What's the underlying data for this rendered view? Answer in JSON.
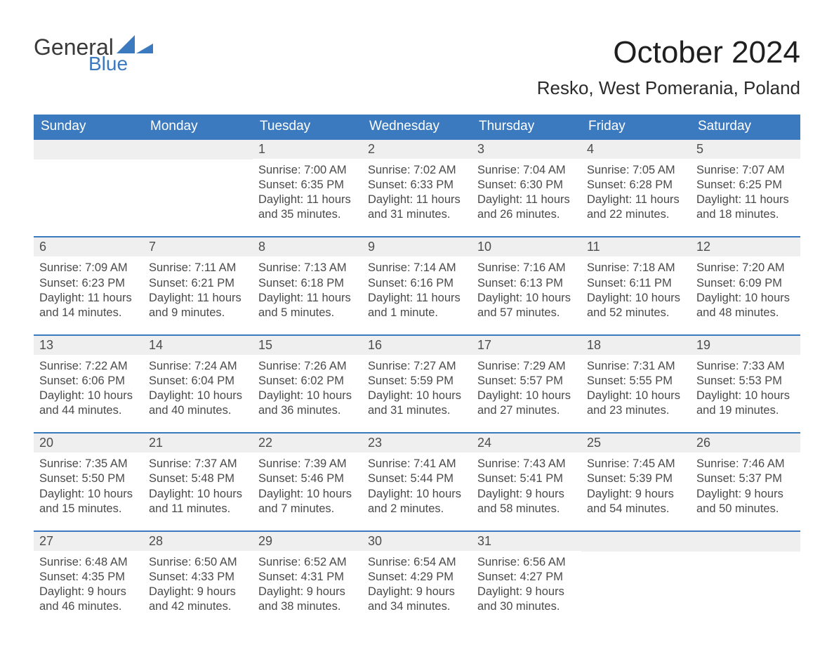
{
  "brand": {
    "line1": "General",
    "line2": "Blue",
    "logo_color": "#3c7abf",
    "text_color": "#3a3a3a"
  },
  "header": {
    "title": "October 2024",
    "subtitle": "Resko, West Pomerania, Poland"
  },
  "calendar": {
    "weekdays": [
      "Sunday",
      "Monday",
      "Tuesday",
      "Wednesday",
      "Thursday",
      "Friday",
      "Saturday"
    ],
    "colors": {
      "header_bg": "#3c7abf",
      "header_fg": "#ffffff",
      "daynum_bg": "#efefef",
      "rule": "#3c7abf"
    },
    "labels": {
      "sunrise": "Sunrise:",
      "sunset": "Sunset:",
      "daylight": "Daylight:"
    },
    "weeks": [
      [
        null,
        null,
        {
          "n": 1,
          "sunrise": "7:00 AM",
          "sunset": "6:35 PM",
          "daylight": "11 hours and 35 minutes."
        },
        {
          "n": 2,
          "sunrise": "7:02 AM",
          "sunset": "6:33 PM",
          "daylight": "11 hours and 31 minutes."
        },
        {
          "n": 3,
          "sunrise": "7:04 AM",
          "sunset": "6:30 PM",
          "daylight": "11 hours and 26 minutes."
        },
        {
          "n": 4,
          "sunrise": "7:05 AM",
          "sunset": "6:28 PM",
          "daylight": "11 hours and 22 minutes."
        },
        {
          "n": 5,
          "sunrise": "7:07 AM",
          "sunset": "6:25 PM",
          "daylight": "11 hours and 18 minutes."
        }
      ],
      [
        {
          "n": 6,
          "sunrise": "7:09 AM",
          "sunset": "6:23 PM",
          "daylight": "11 hours and 14 minutes."
        },
        {
          "n": 7,
          "sunrise": "7:11 AM",
          "sunset": "6:21 PM",
          "daylight": "11 hours and 9 minutes."
        },
        {
          "n": 8,
          "sunrise": "7:13 AM",
          "sunset": "6:18 PM",
          "daylight": "11 hours and 5 minutes."
        },
        {
          "n": 9,
          "sunrise": "7:14 AM",
          "sunset": "6:16 PM",
          "daylight": "11 hours and 1 minute."
        },
        {
          "n": 10,
          "sunrise": "7:16 AM",
          "sunset": "6:13 PM",
          "daylight": "10 hours and 57 minutes."
        },
        {
          "n": 11,
          "sunrise": "7:18 AM",
          "sunset": "6:11 PM",
          "daylight": "10 hours and 52 minutes."
        },
        {
          "n": 12,
          "sunrise": "7:20 AM",
          "sunset": "6:09 PM",
          "daylight": "10 hours and 48 minutes."
        }
      ],
      [
        {
          "n": 13,
          "sunrise": "7:22 AM",
          "sunset": "6:06 PM",
          "daylight": "10 hours and 44 minutes."
        },
        {
          "n": 14,
          "sunrise": "7:24 AM",
          "sunset": "6:04 PM",
          "daylight": "10 hours and 40 minutes."
        },
        {
          "n": 15,
          "sunrise": "7:26 AM",
          "sunset": "6:02 PM",
          "daylight": "10 hours and 36 minutes."
        },
        {
          "n": 16,
          "sunrise": "7:27 AM",
          "sunset": "5:59 PM",
          "daylight": "10 hours and 31 minutes."
        },
        {
          "n": 17,
          "sunrise": "7:29 AM",
          "sunset": "5:57 PM",
          "daylight": "10 hours and 27 minutes."
        },
        {
          "n": 18,
          "sunrise": "7:31 AM",
          "sunset": "5:55 PM",
          "daylight": "10 hours and 23 minutes."
        },
        {
          "n": 19,
          "sunrise": "7:33 AM",
          "sunset": "5:53 PM",
          "daylight": "10 hours and 19 minutes."
        }
      ],
      [
        {
          "n": 20,
          "sunrise": "7:35 AM",
          "sunset": "5:50 PM",
          "daylight": "10 hours and 15 minutes."
        },
        {
          "n": 21,
          "sunrise": "7:37 AM",
          "sunset": "5:48 PM",
          "daylight": "10 hours and 11 minutes."
        },
        {
          "n": 22,
          "sunrise": "7:39 AM",
          "sunset": "5:46 PM",
          "daylight": "10 hours and 7 minutes."
        },
        {
          "n": 23,
          "sunrise": "7:41 AM",
          "sunset": "5:44 PM",
          "daylight": "10 hours and 2 minutes."
        },
        {
          "n": 24,
          "sunrise": "7:43 AM",
          "sunset": "5:41 PM",
          "daylight": "9 hours and 58 minutes."
        },
        {
          "n": 25,
          "sunrise": "7:45 AM",
          "sunset": "5:39 PM",
          "daylight": "9 hours and 54 minutes."
        },
        {
          "n": 26,
          "sunrise": "7:46 AM",
          "sunset": "5:37 PM",
          "daylight": "9 hours and 50 minutes."
        }
      ],
      [
        {
          "n": 27,
          "sunrise": "6:48 AM",
          "sunset": "4:35 PM",
          "daylight": "9 hours and 46 minutes."
        },
        {
          "n": 28,
          "sunrise": "6:50 AM",
          "sunset": "4:33 PM",
          "daylight": "9 hours and 42 minutes."
        },
        {
          "n": 29,
          "sunrise": "6:52 AM",
          "sunset": "4:31 PM",
          "daylight": "9 hours and 38 minutes."
        },
        {
          "n": 30,
          "sunrise": "6:54 AM",
          "sunset": "4:29 PM",
          "daylight": "9 hours and 34 minutes."
        },
        {
          "n": 31,
          "sunrise": "6:56 AM",
          "sunset": "4:27 PM",
          "daylight": "9 hours and 30 minutes."
        },
        null,
        null
      ]
    ]
  }
}
